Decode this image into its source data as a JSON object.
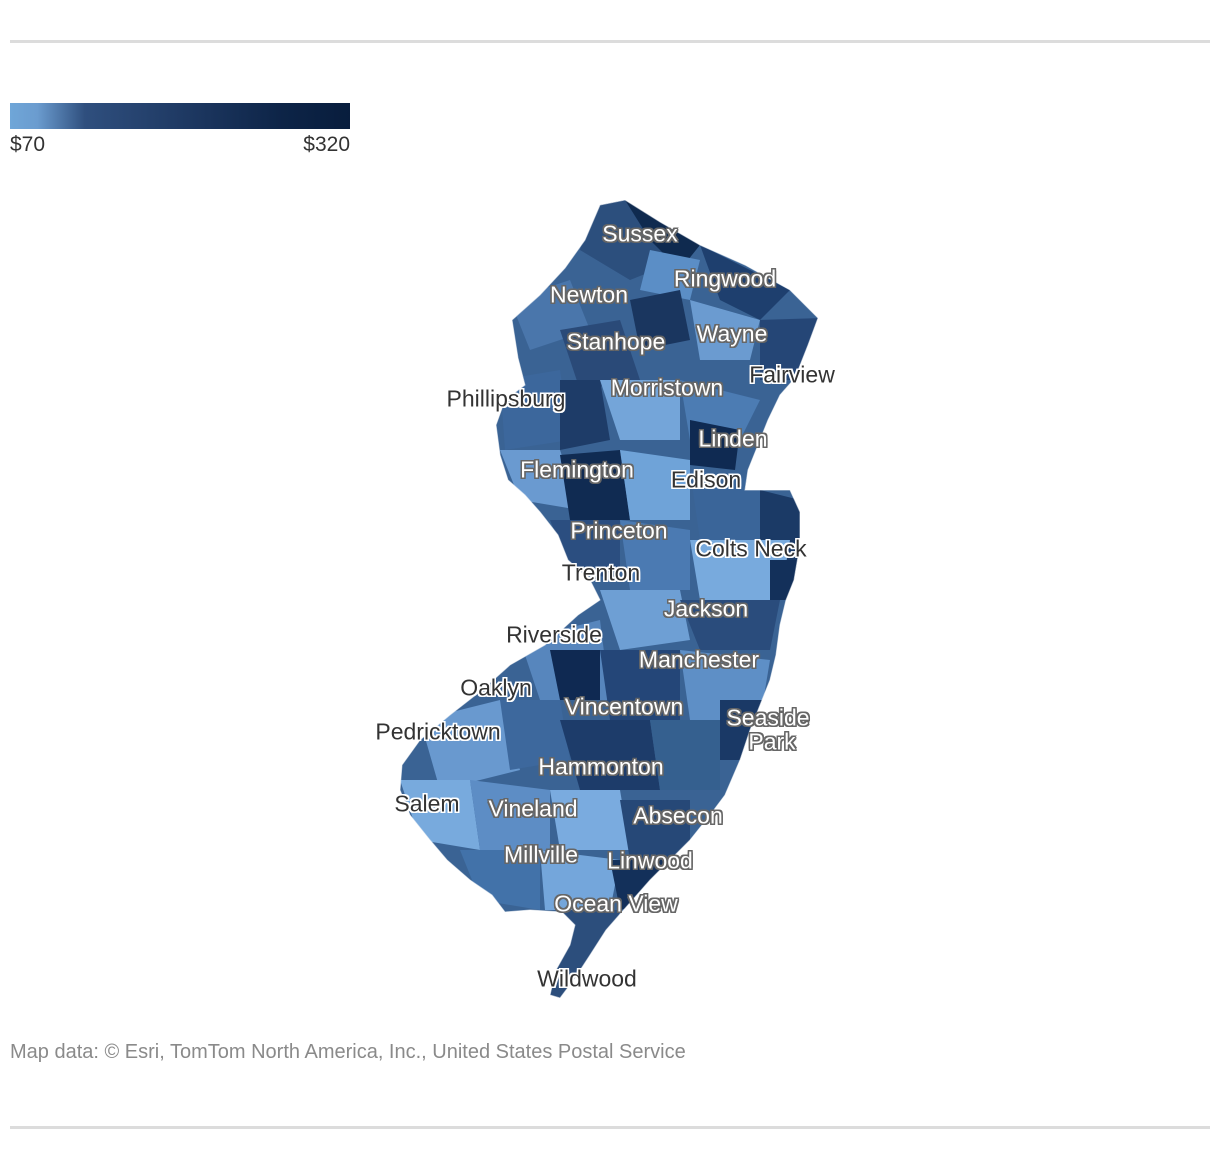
{
  "legend": {
    "min_label": "$70",
    "max_label": "$320",
    "min_value": 70,
    "max_value": 320,
    "color_low": "#6fa6d8",
    "color_high": "#081d3d"
  },
  "map": {
    "state": "New Jersey",
    "places": [
      {
        "id": "sussex",
        "label": "Sussex",
        "style": "light"
      },
      {
        "id": "ringwood",
        "label": "Ringwood",
        "style": "light"
      },
      {
        "id": "newton",
        "label": "Newton",
        "style": "light"
      },
      {
        "id": "wayne",
        "label": "Wayne",
        "style": "light"
      },
      {
        "id": "stanhope",
        "label": "Stanhope",
        "style": "light"
      },
      {
        "id": "fairview",
        "label": "Fairview",
        "style": "dark"
      },
      {
        "id": "phillipsburg",
        "label": "Phillipsburg",
        "style": "dark"
      },
      {
        "id": "morristown",
        "label": "Morristown",
        "style": "light"
      },
      {
        "id": "linden",
        "label": "Linden",
        "style": "light"
      },
      {
        "id": "flemington",
        "label": "Flemington",
        "style": "light"
      },
      {
        "id": "edison",
        "label": "Edison",
        "style": "dark"
      },
      {
        "id": "princeton",
        "label": "Princeton",
        "style": "light"
      },
      {
        "id": "colts-neck",
        "label": "Colts Neck",
        "style": "dark"
      },
      {
        "id": "trenton",
        "label": "Trenton",
        "style": "dark"
      },
      {
        "id": "jackson",
        "label": "Jackson",
        "style": "light"
      },
      {
        "id": "riverside",
        "label": "Riverside",
        "style": "dark"
      },
      {
        "id": "manchester",
        "label": "Manchester",
        "style": "light"
      },
      {
        "id": "oaklyn",
        "label": "Oaklyn",
        "style": "dark"
      },
      {
        "id": "vincentown",
        "label": "Vincentown",
        "style": "light"
      },
      {
        "id": "seaside-park-1",
        "label": "Seaside",
        "style": "light"
      },
      {
        "id": "seaside-park-2",
        "label": "Park",
        "style": "light"
      },
      {
        "id": "pedricktown",
        "label": "Pedricktown",
        "style": "dark"
      },
      {
        "id": "hammonton",
        "label": "Hammonton",
        "style": "light"
      },
      {
        "id": "salem",
        "label": "Salem",
        "style": "dark"
      },
      {
        "id": "vineland",
        "label": "Vineland",
        "style": "light"
      },
      {
        "id": "absecon",
        "label": "Absecon",
        "style": "light"
      },
      {
        "id": "millville",
        "label": "Millville",
        "style": "light"
      },
      {
        "id": "linwood",
        "label": "Linwood",
        "style": "light"
      },
      {
        "id": "ocean-view",
        "label": "Ocean View",
        "style": "light"
      },
      {
        "id": "wildwood",
        "label": "Wildwood",
        "style": "dark"
      }
    ]
  },
  "attribution": "Map data: © Esri, TomTom North America, Inc., United States Postal Service"
}
